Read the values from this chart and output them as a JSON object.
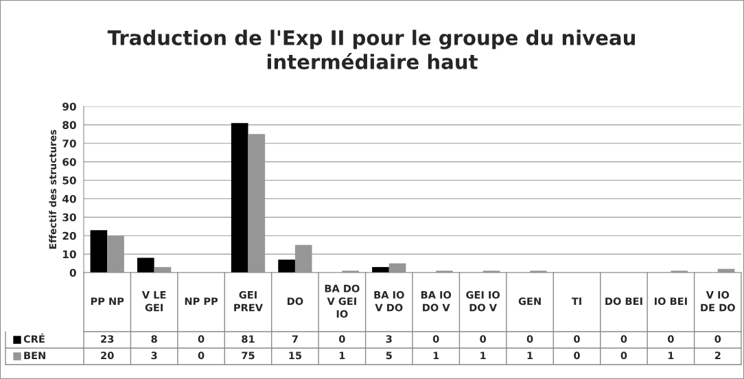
{
  "chart_data": {
    "type": "bar",
    "title": "Traduction de l'Exp II pour le groupe du niveau intermédiaire haut",
    "ylabel": "Effectif des structures",
    "categories": [
      "PP NP",
      "V LE GEI",
      "NP PP",
      "GEI PREV",
      "DO",
      "BA DO V GEI IO",
      "BA IO V DO",
      "BA IO DO V",
      "GEI IO DO V",
      "GEN",
      "TI",
      "DO BEI",
      "IO BEI",
      "V IO DE DO"
    ],
    "series": [
      {
        "name": "CRÉ",
        "color": "#000000",
        "values": [
          23,
          8,
          0,
          81,
          7,
          0,
          3,
          0,
          0,
          0,
          0,
          0,
          0,
          0
        ]
      },
      {
        "name": "BEN",
        "color": "#969696",
        "values": [
          20,
          3,
          0,
          75,
          15,
          1,
          5,
          1,
          1,
          1,
          0,
          0,
          1,
          2
        ]
      }
    ],
    "ylim": [
      0,
      90
    ],
    "yticks": [
      0,
      10,
      20,
      30,
      40,
      50,
      60,
      70,
      80,
      90
    ],
    "grid": "y",
    "legend": "bottom left",
    "data_labels": true
  }
}
